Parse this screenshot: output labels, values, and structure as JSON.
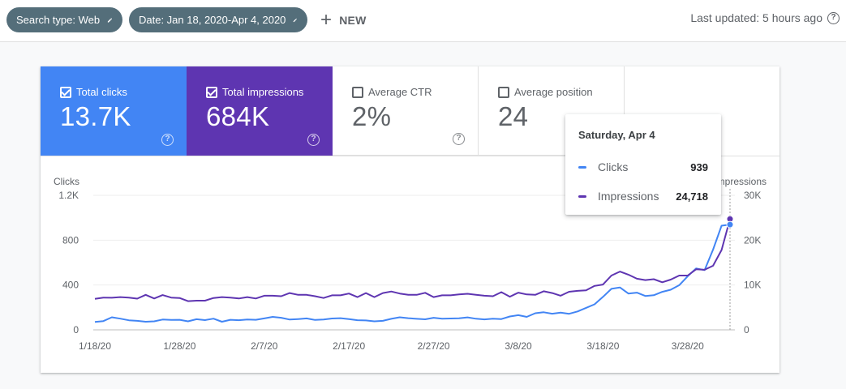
{
  "filters": {
    "search_type": "Search type: Web",
    "date": "Date: Jan 18, 2020-Apr 4, 2020",
    "new_label": "NEW",
    "last_updated": "Last updated: 5 hours ago"
  },
  "metrics": [
    {
      "label": "Total clicks",
      "value": "13.7K",
      "checked": true
    },
    {
      "label": "Total impressions",
      "value": "684K",
      "checked": true
    },
    {
      "label": "Average CTR",
      "value": "2%",
      "checked": false
    },
    {
      "label": "Average position",
      "value": "24",
      "checked": false
    }
  ],
  "tooltip": {
    "date": "Saturday, Apr 4",
    "clicks_label": "Clicks",
    "clicks_value": "939",
    "impressions_label": "Impressions",
    "impressions_value": "24,718"
  },
  "colors": {
    "clicks": "#4285f4",
    "impressions": "#5e35b1",
    "chip": "#546e7a"
  },
  "chart_data": {
    "type": "line",
    "left_axis_label": "Clicks",
    "right_axis_label": "Impressions",
    "left_ticks": [
      "0",
      "400",
      "800",
      "1.2K"
    ],
    "right_ticks": [
      "0",
      "10K",
      "20K",
      "30K"
    ],
    "left_ylim": [
      0,
      1200
    ],
    "right_ylim": [
      0,
      30000
    ],
    "x_tick_labels": [
      "1/18/20",
      "1/28/20",
      "2/7/20",
      "2/17/20",
      "2/27/20",
      "3/8/20",
      "3/18/20",
      "3/28/20"
    ],
    "x_tick_index": [
      0,
      10,
      20,
      30,
      40,
      50,
      60,
      70
    ],
    "series": [
      {
        "name": "Clicks",
        "axis": "left",
        "values": [
          70,
          78,
          112,
          100,
          85,
          80,
          72,
          76,
          92,
          88,
          90,
          76,
          95,
          87,
          100,
          72,
          90,
          86,
          92,
          90,
          102,
          116,
          108,
          92,
          96,
          102,
          88,
          92,
          101,
          104,
          96,
          86,
          84,
          76,
          80,
          98,
          112,
          104,
          98,
          94,
          108,
          99,
          101,
          103,
          111,
          99,
          93,
          100,
          96,
          119,
          131,
          116,
          148,
          157,
          144,
          154,
          143,
          164,
          196,
          228,
          294,
          366,
          378,
          324,
          332,
          302,
          309,
          339,
          358,
          398,
          478,
          548,
          533,
          716,
          929,
          939
        ]
      },
      {
        "name": "Impressions",
        "axis": "right",
        "values": [
          6900,
          7200,
          7150,
          7300,
          7200,
          6950,
          7800,
          7000,
          7750,
          7200,
          7100,
          6400,
          6500,
          6500,
          7100,
          7300,
          7200,
          7000,
          7300,
          7000,
          7600,
          7600,
          7500,
          8200,
          7800,
          7800,
          7500,
          7100,
          7700,
          7700,
          8100,
          7300,
          8200,
          7300,
          8200,
          8550,
          8100,
          7800,
          7800,
          8250,
          7300,
          7700,
          7700,
          7900,
          8050,
          7800,
          7600,
          7500,
          8400,
          7400,
          8300,
          7900,
          7800,
          8600,
          8200,
          7600,
          8500,
          8700,
          8800,
          9800,
          10100,
          12100,
          13000,
          12300,
          11400,
          11100,
          11300,
          10600,
          11200,
          12100,
          12100,
          13500,
          13400,
          14300,
          17800,
          24718
        ]
      }
    ]
  }
}
